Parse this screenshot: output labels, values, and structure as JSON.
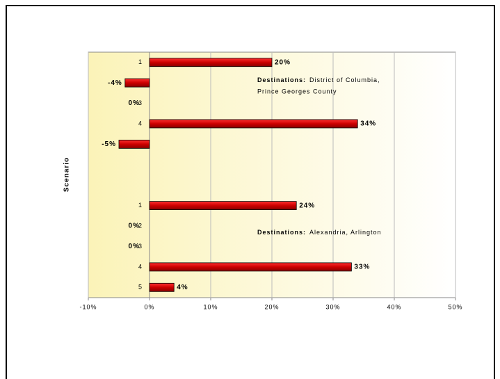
{
  "chart_data": {
    "type": "hbar",
    "y_axis_label": "Scenario",
    "categories": [
      "1",
      "2",
      "3",
      "4",
      "5",
      null,
      null,
      "1",
      "2",
      "3",
      "4",
      "5"
    ],
    "values": [
      20,
      -4,
      0,
      34,
      -5,
      null,
      null,
      24,
      0,
      0,
      33,
      4
    ],
    "value_labels": [
      "20%",
      "-4%",
      "0%",
      "34%",
      "-5%",
      null,
      null,
      "24%",
      "0%",
      "0%",
      "33%",
      "4%"
    ],
    "color": "#cc0000",
    "xlim": [
      -10,
      50
    ],
    "xticks": [
      {
        "value": -10,
        "label": "-10%"
      },
      {
        "value": 0,
        "label": "0%"
      },
      {
        "value": 10,
        "label": "10%"
      },
      {
        "value": 20,
        "label": "20%"
      },
      {
        "value": 30,
        "label": "30%"
      },
      {
        "value": 40,
        "label": "40%"
      },
      {
        "value": 50,
        "label": "50%"
      }
    ],
    "grid": true,
    "annotations": [
      {
        "label": "Destinations:",
        "lines": [
          "District of Columbia,",
          "Prince Georges County"
        ]
      },
      {
        "label": "Destinations:",
        "lines": [
          "Alexandria, Arlington"
        ]
      }
    ]
  }
}
